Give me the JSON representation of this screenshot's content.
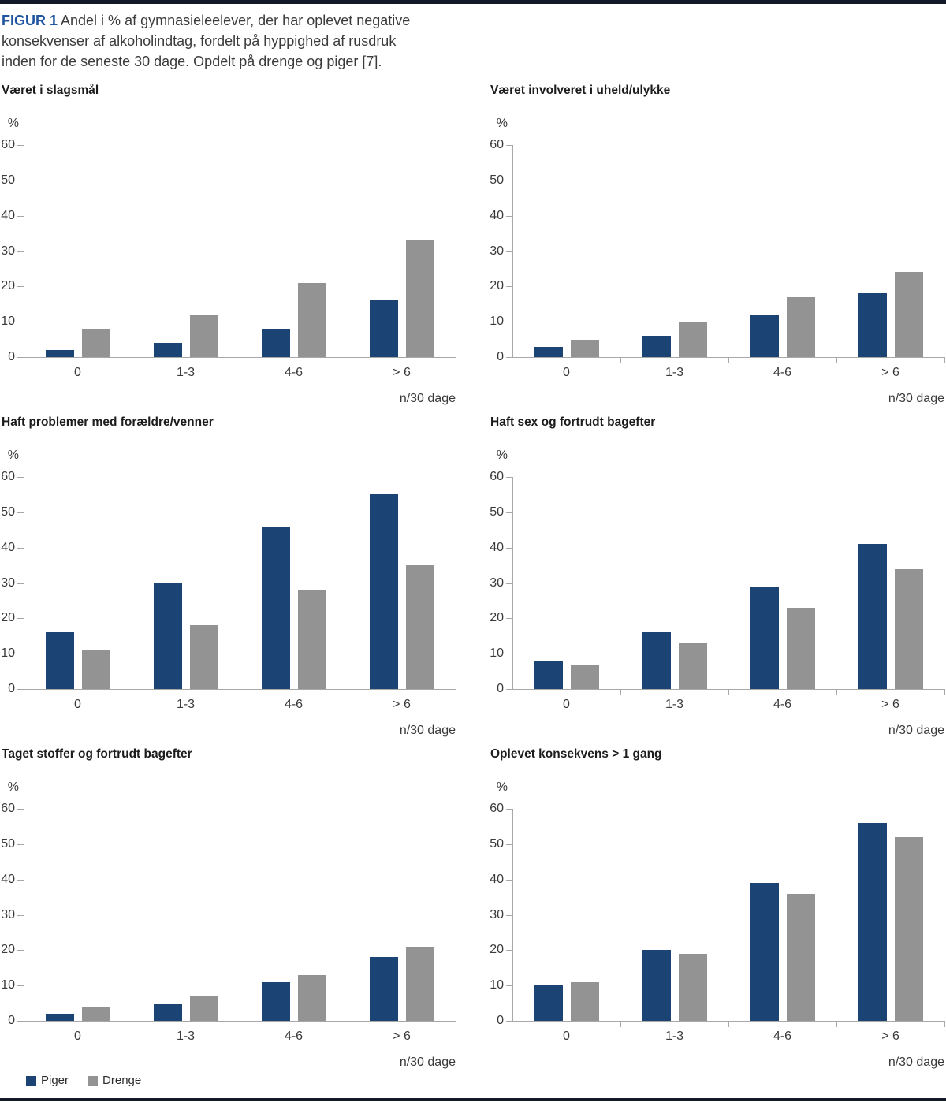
{
  "header": {
    "figure_label": "FIGUR 1",
    "line1_rest": " Andel i % af gymnasieleelever, der har oplevet negative",
    "line2": "konsekvenser af alkoholindtag, fordelt på hyppighed af rusdruk",
    "line3": "inden for de seneste 30 dage. Opdelt på drenge og piger [7]."
  },
  "axis": {
    "percent_symbol": "%",
    "x_unit_label": "n/30 dage",
    "y_ticks": [
      0,
      10,
      20,
      30,
      40,
      50,
      60
    ],
    "ylim": [
      0,
      60
    ]
  },
  "colors": {
    "piger": "#1b4374",
    "drenge": "#939393",
    "axis": "#a8a8a8",
    "figure_label_blue": "#1f55a0"
  },
  "legend": {
    "items": [
      {
        "label": "Piger",
        "color": "#1b4374"
      },
      {
        "label": "Drenge",
        "color": "#939393"
      }
    ]
  },
  "chart_data": [
    {
      "type": "bar",
      "title": "Været i slagsmål",
      "categories": [
        "0",
        "1-3",
        "4-6",
        "> 6"
      ],
      "series": [
        {
          "name": "Piger",
          "color": "#1b4374",
          "values": [
            2,
            4,
            8,
            16
          ]
        },
        {
          "name": "Drenge",
          "color": "#939393",
          "values": [
            8,
            12,
            21,
            33
          ]
        }
      ],
      "xlabel": "n/30 dage",
      "ylabel": "%",
      "ylim": [
        0,
        60
      ]
    },
    {
      "type": "bar",
      "title": "Været involveret i uheld/ulykke",
      "categories": [
        "0",
        "1-3",
        "4-6",
        "> 6"
      ],
      "series": [
        {
          "name": "Piger",
          "color": "#1b4374",
          "values": [
            3,
            6,
            12,
            18
          ]
        },
        {
          "name": "Drenge",
          "color": "#939393",
          "values": [
            5,
            10,
            17,
            24
          ]
        }
      ],
      "xlabel": "n/30 dage",
      "ylabel": "%",
      "ylim": [
        0,
        60
      ]
    },
    {
      "type": "bar",
      "title": "Haft problemer med forældre/venner",
      "categories": [
        "0",
        "1-3",
        "4-6",
        "> 6"
      ],
      "series": [
        {
          "name": "Piger",
          "color": "#1b4374",
          "values": [
            16,
            30,
            46,
            55
          ]
        },
        {
          "name": "Drenge",
          "color": "#939393",
          "values": [
            11,
            18,
            28,
            35
          ]
        }
      ],
      "xlabel": "n/30 dage",
      "ylabel": "%",
      "ylim": [
        0,
        60
      ]
    },
    {
      "type": "bar",
      "title": "Haft sex og fortrudt bagefter",
      "categories": [
        "0",
        "1-3",
        "4-6",
        "> 6"
      ],
      "series": [
        {
          "name": "Piger",
          "color": "#1b4374",
          "values": [
            8,
            16,
            29,
            41
          ]
        },
        {
          "name": "Drenge",
          "color": "#939393",
          "values": [
            7,
            13,
            23,
            34
          ]
        }
      ],
      "xlabel": "n/30 dage",
      "ylabel": "%",
      "ylim": [
        0,
        60
      ]
    },
    {
      "type": "bar",
      "title": "Taget stoffer og fortrudt bagefter",
      "categories": [
        "0",
        "1-3",
        "4-6",
        "> 6"
      ],
      "series": [
        {
          "name": "Piger",
          "color": "#1b4374",
          "values": [
            2,
            5,
            11,
            18
          ]
        },
        {
          "name": "Drenge",
          "color": "#939393",
          "values": [
            4,
            7,
            13,
            21
          ]
        }
      ],
      "xlabel": "n/30 dage",
      "ylabel": "%",
      "ylim": [
        0,
        60
      ]
    },
    {
      "type": "bar",
      "title": "Oplevet konsekvens > 1 gang",
      "categories": [
        "0",
        "1-3",
        "4-6",
        "> 6"
      ],
      "series": [
        {
          "name": "Piger",
          "color": "#1b4374",
          "values": [
            10,
            20,
            39,
            56
          ]
        },
        {
          "name": "Drenge",
          "color": "#939393",
          "values": [
            11,
            19,
            36,
            52
          ]
        }
      ],
      "xlabel": "n/30 dage",
      "ylabel": "%",
      "ylim": [
        0,
        60
      ]
    }
  ]
}
